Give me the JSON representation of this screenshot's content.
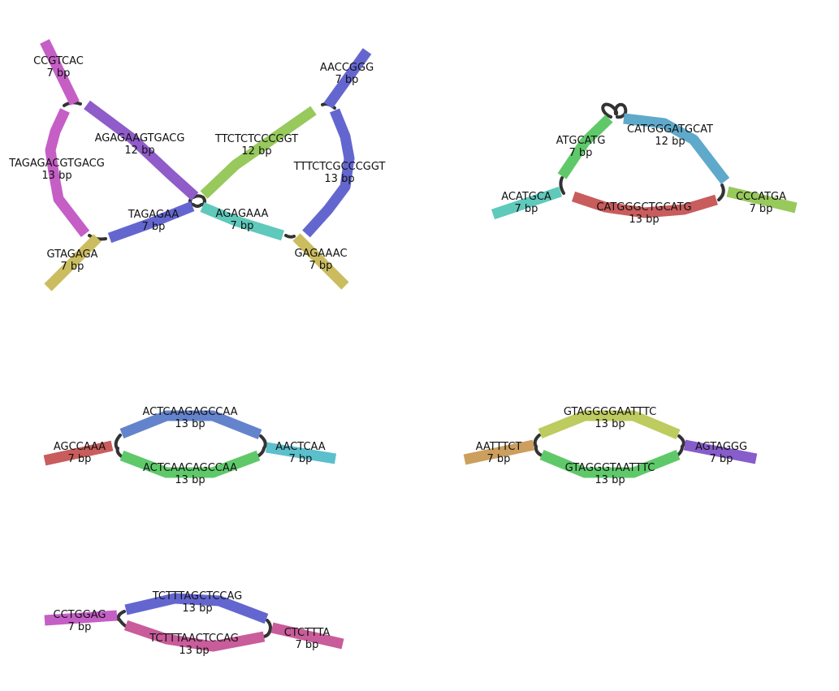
{
  "colors": {
    "link": "#333333",
    "magenta": "#c55fc6",
    "violet": "#8f5cc9",
    "indigo": "#6466d0",
    "olive": "#cbbd5f",
    "lime": "#97c95c",
    "teal": "#5fc9bb",
    "green": "#5fc96a",
    "sky": "#5fa9cb",
    "red": "#c95c5c",
    "blue": "#6383cc",
    "cyan": "#5bbfcc",
    "khaki": "#bdcb5f",
    "tan": "#cc9f5e",
    "purple": "#875ccb",
    "pink": "#c95c9a"
  },
  "diagrams": [
    {
      "name": "multiloop-structure",
      "segments": [
        {
          "name": "ccgtcac",
          "sequence": "CCGTCAC",
          "length": "7 bp",
          "color": "magenta"
        },
        {
          "name": "tagagacgtgacg",
          "sequence": "TAGAGACGTGACG",
          "length": "13 bp",
          "color": "magenta"
        },
        {
          "name": "agagaagtgacg",
          "sequence": "AGAGAAGTGACG",
          "length": "12 bp",
          "color": "violet"
        },
        {
          "name": "tagagaa",
          "sequence": "TAGAGAA",
          "length": "7 bp",
          "color": "indigo"
        },
        {
          "name": "gtagaga",
          "sequence": "GTAGAGA",
          "length": "7 bp",
          "color": "olive"
        },
        {
          "name": "ttctctcccggt",
          "sequence": "TTCTCTCCCGGT",
          "length": "12 bp",
          "color": "lime"
        },
        {
          "name": "aaccggg",
          "sequence": "AACCGGG",
          "length": "7 bp",
          "color": "indigo"
        },
        {
          "name": "tttctcgcccggt",
          "sequence": "TTTCTCGCCCGGT",
          "length": "13 bp",
          "color": "indigo"
        },
        {
          "name": "agagaaa",
          "sequence": "AGAGAAA",
          "length": "7 bp",
          "color": "teal"
        },
        {
          "name": "gagaaac",
          "sequence": "GAGAAAC",
          "length": "7 bp",
          "color": "olive"
        }
      ]
    },
    {
      "name": "hairpin-loop-structure",
      "segments": [
        {
          "name": "atgcatg",
          "sequence": "ATGCATG",
          "length": "7 bp",
          "color": "green"
        },
        {
          "name": "catgggatgcat",
          "sequence": "CATGGGATGCAT",
          "length": "12 bp",
          "color": "sky"
        },
        {
          "name": "acatgca",
          "sequence": "ACATGCA",
          "length": "7 bp",
          "color": "teal"
        },
        {
          "name": "catgggctgcatg",
          "sequence": "CATGGGCTGCATG",
          "length": "13 bp",
          "color": "red"
        },
        {
          "name": "cccatga",
          "sequence": "CCCATGA",
          "length": "7 bp",
          "color": "lime"
        }
      ]
    },
    {
      "name": "duplex-structure-1",
      "segments": [
        {
          "name": "actcaagagccaa",
          "sequence": "ACTCAAGAGCCAA",
          "length": "13 bp",
          "color": "blue"
        },
        {
          "name": "agccaaa",
          "sequence": "AGCCAAA",
          "length": "7 bp",
          "color": "red"
        },
        {
          "name": "aactcaa",
          "sequence": "AACTCAA",
          "length": "7 bp",
          "color": "cyan"
        },
        {
          "name": "actcaacagccaa",
          "sequence": "ACTCAACAGCCAA",
          "length": "13 bp",
          "color": "green"
        }
      ]
    },
    {
      "name": "duplex-structure-2",
      "segments": [
        {
          "name": "gtaggggaatttc",
          "sequence": "GTAGGGGAATTTC",
          "length": "13 bp",
          "color": "khaki"
        },
        {
          "name": "aatttct",
          "sequence": "AATTTCT",
          "length": "7 bp",
          "color": "tan"
        },
        {
          "name": "agtaggg",
          "sequence": "AGTAGGG",
          "length": "7 bp",
          "color": "purple"
        },
        {
          "name": "gtagggtaatttc",
          "sequence": "GTAGGGTAATTTC",
          "length": "13 bp",
          "color": "green"
        }
      ]
    },
    {
      "name": "duplex-structure-3",
      "segments": [
        {
          "name": "tctttagctccag",
          "sequence": "TCTTTAGCTCCAG",
          "length": "13 bp",
          "color": "indigo"
        },
        {
          "name": "cctggag",
          "sequence": "CCTGGAG",
          "length": "7 bp",
          "color": "magenta"
        },
        {
          "name": "tctttaactccag",
          "sequence": "TCTTTAACTCCAG",
          "length": "13 bp",
          "color": "pink"
        },
        {
          "name": "ctcttta",
          "sequence": "CTCTTTA",
          "length": "7 bp",
          "color": "pink"
        }
      ]
    }
  ]
}
